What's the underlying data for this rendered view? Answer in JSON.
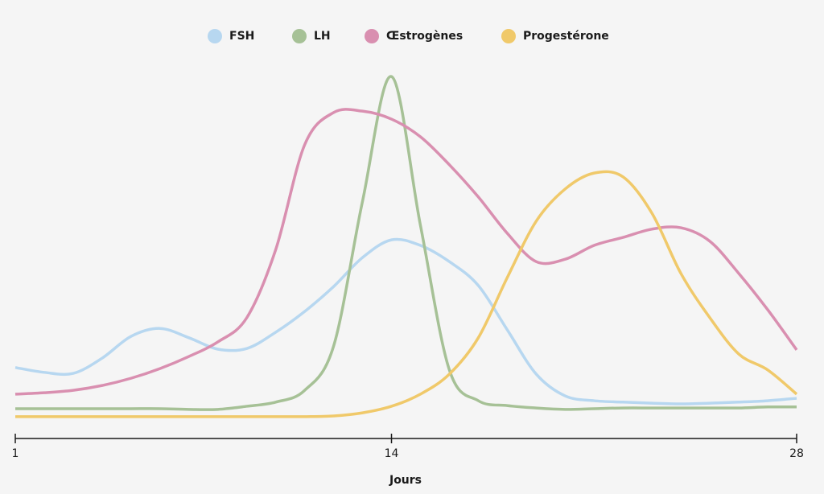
{
  "chart_data": {
    "type": "line",
    "x_label": "Jours",
    "x": [
      1,
      2,
      3,
      4,
      5,
      6,
      7,
      8,
      9,
      10,
      11,
      12,
      13,
      14,
      15,
      16,
      17,
      18,
      19,
      20,
      21,
      22,
      23,
      24,
      25,
      26,
      27,
      28
    ],
    "xlim": [
      1,
      28
    ],
    "xticks": [
      1,
      14,
      28
    ],
    "ylim": [
      0,
      100
    ],
    "legend": "top",
    "series": [
      {
        "name": "FSH",
        "color": "#b7d7f0",
        "values": [
          14.7,
          13.3,
          13.0,
          17.4,
          23.7,
          26.0,
          23.3,
          20.0,
          20.2,
          24.9,
          30.9,
          38.1,
          46.5,
          51.6,
          50.0,
          45.3,
          38.4,
          25.6,
          12.8,
          6.5,
          5.1,
          4.7,
          4.4,
          4.2,
          4.4,
          4.7,
          5.1,
          5.8
        ]
      },
      {
        "name": "LH",
        "color": "#a6c196",
        "values": [
          2.8,
          2.8,
          2.8,
          2.8,
          2.8,
          2.8,
          2.6,
          2.6,
          3.5,
          4.7,
          8.1,
          20.9,
          62.8,
          98.8,
          55.8,
          14.0,
          5.1,
          3.7,
          3.0,
          2.6,
          2.8,
          3.0,
          3.0,
          3.0,
          3.0,
          3.0,
          3.3,
          3.3
        ]
      },
      {
        "name": "Œstrogènes",
        "color": "#d98fb0",
        "values": [
          7.0,
          7.4,
          8.1,
          9.5,
          11.6,
          14.4,
          17.9,
          22.1,
          29.1,
          48.8,
          79.1,
          88.4,
          88.8,
          86.5,
          81.4,
          73.3,
          64.0,
          53.5,
          45.3,
          46.0,
          50.0,
          52.3,
          54.7,
          55.1,
          51.2,
          41.9,
          31.4,
          19.8
        ]
      },
      {
        "name": "Progestérone",
        "color": "#f0c96a",
        "values": [
          0.5,
          0.5,
          0.5,
          0.5,
          0.5,
          0.5,
          0.5,
          0.5,
          0.5,
          0.5,
          0.5,
          0.7,
          1.6,
          3.5,
          7.0,
          12.8,
          23.3,
          40.7,
          57.0,
          66.3,
          70.9,
          69.8,
          59.3,
          41.9,
          29.1,
          18.6,
          14.0,
          7.0
        ]
      }
    ]
  }
}
